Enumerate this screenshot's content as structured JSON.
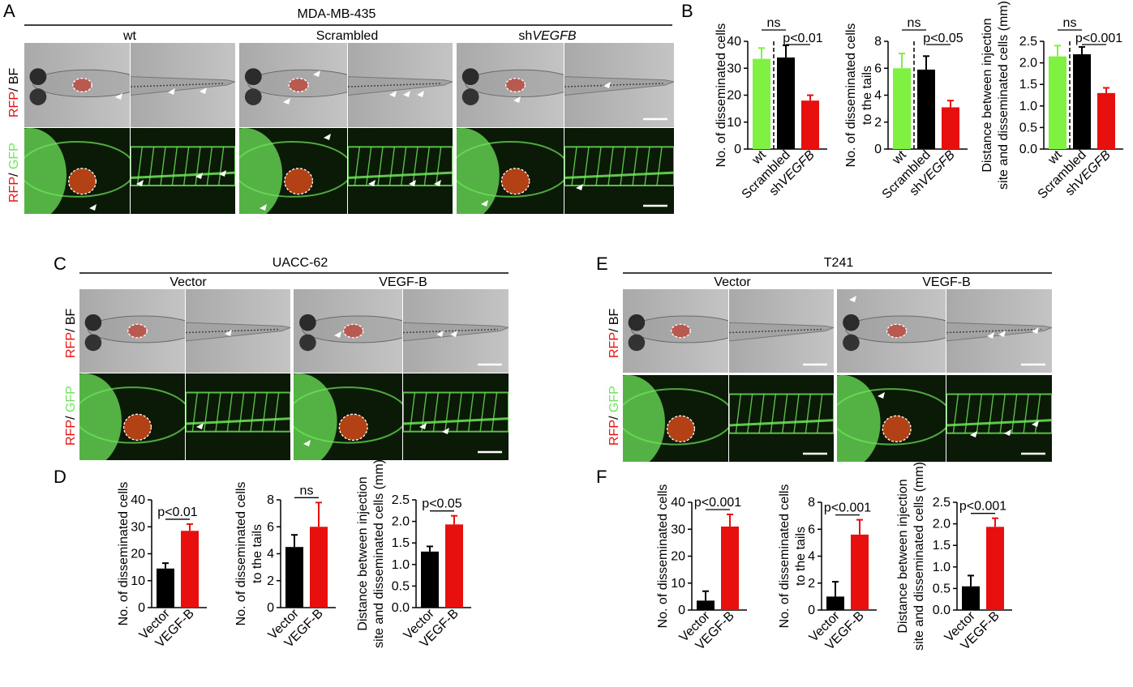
{
  "colors": {
    "wt": "#7ff241",
    "black": "#000000",
    "red": "#e8100e",
    "gfp": "#6ee65a",
    "rfp": "#e8100e",
    "bf_bg": "#b4b4b4",
    "fl_bg": "#0b1a06"
  },
  "panel_labels": {
    "a": "A",
    "b": "B",
    "c": "C",
    "d": "D",
    "e": "E",
    "f": "F"
  },
  "channels": {
    "rfp": "RFP",
    "bf": "BF",
    "gfp": "GFP",
    "sep": "/ "
  },
  "panel_a": {
    "cell_line": "MDA-MB-435",
    "groups": [
      {
        "label": "wt",
        "italic": ""
      },
      {
        "label": "Scrambled",
        "italic": ""
      },
      {
        "label": "sh",
        "italic": "VEGFB"
      }
    ]
  },
  "panel_c": {
    "cell_line": "UACC-62",
    "groups": [
      "Vector",
      "VEGF-B"
    ]
  },
  "panel_e": {
    "cell_line": "T241",
    "groups": [
      "Vector",
      "VEGF-B"
    ]
  },
  "chart_data": [
    {
      "id": "B1",
      "type": "bar",
      "ylabel": "No. of disseminated cells",
      "categories": [
        "wt",
        "Scrambled",
        "shVEGFB"
      ],
      "values": [
        33.5,
        34,
        18
      ],
      "errors": [
        4,
        4.5,
        2
      ],
      "ylim": [
        0,
        40
      ],
      "yticks": [
        0,
        10,
        20,
        30,
        40
      ],
      "ns": "ns",
      "p": "p<0.01"
    },
    {
      "id": "B2",
      "type": "bar",
      "ylabel": "No. of disseminated cells to the tails",
      "categories": [
        "wt",
        "Scrambled",
        "shVEGFB"
      ],
      "values": [
        6,
        5.9,
        3.1
      ],
      "errors": [
        1.1,
        1,
        0.5
      ],
      "ylim": [
        0,
        8
      ],
      "yticks": [
        0,
        2,
        4,
        6,
        8
      ],
      "ns": "ns",
      "p": "p<0.05"
    },
    {
      "id": "B3",
      "type": "bar",
      "ylabel": "Distance between injection site and disseminated cells (mm)",
      "categories": [
        "wt",
        "Scrambled",
        "shVEGFB"
      ],
      "values": [
        2.15,
        2.2,
        1.3
      ],
      "errors": [
        0.25,
        0.17,
        0.12
      ],
      "ylim": [
        0,
        2.5
      ],
      "yticks": [
        0,
        0.5,
        1.0,
        1.5,
        2.0,
        2.5
      ],
      "ns": "ns",
      "p": "p<0.001"
    },
    {
      "id": "D1",
      "type": "bar",
      "ylabel": "No. of disseminated cells",
      "categories": [
        "Vector",
        "VEGF-B"
      ],
      "values": [
        14.5,
        28.5
      ],
      "errors": [
        2,
        2.5
      ],
      "ylim": [
        0,
        40
      ],
      "yticks": [
        0,
        10,
        20,
        30,
        40
      ],
      "p": "p<0.01"
    },
    {
      "id": "D2",
      "type": "bar",
      "ylabel": "No. of disseminated cells to the tails",
      "categories": [
        "Vector",
        "VEGF-B"
      ],
      "values": [
        4.5,
        6
      ],
      "errors": [
        0.9,
        1.8
      ],
      "ylim": [
        0,
        8
      ],
      "yticks": [
        0,
        2,
        4,
        6,
        8
      ],
      "p": "ns"
    },
    {
      "id": "D3",
      "type": "bar",
      "ylabel": "Distance between injection site and disseminated cells (mm)",
      "categories": [
        "Vector",
        "VEGF-B"
      ],
      "values": [
        1.3,
        1.93
      ],
      "errors": [
        0.12,
        0.2
      ],
      "ylim": [
        0,
        2.5
      ],
      "yticks": [
        0,
        0.5,
        1.0,
        1.5,
        2.0,
        2.5
      ],
      "p": "p<0.05"
    },
    {
      "id": "F1",
      "type": "bar",
      "ylabel": "No. of disseminated cells",
      "categories": [
        "Vector",
        "VEGF-B"
      ],
      "values": [
        3.5,
        31
      ],
      "errors": [
        3.5,
        4.5
      ],
      "ylim": [
        0,
        40
      ],
      "yticks": [
        0,
        10,
        20,
        30,
        40
      ],
      "p": "p<0.001"
    },
    {
      "id": "F2",
      "type": "bar",
      "ylabel": "No. of disseminated cells to the tails",
      "categories": [
        "Vector",
        "VEGF-B"
      ],
      "values": [
        1,
        5.6
      ],
      "errors": [
        1.1,
        1.1
      ],
      "ylim": [
        0,
        8
      ],
      "yticks": [
        0,
        2,
        4,
        6,
        8
      ],
      "p": "p<0.001"
    },
    {
      "id": "F3",
      "type": "bar",
      "ylabel": "Distance between injection site and disseminated cells (mm)",
      "categories": [
        "Vector",
        "VEGF-B"
      ],
      "values": [
        0.55,
        1.93
      ],
      "errors": [
        0.25,
        0.2
      ],
      "ylim": [
        0,
        2.5
      ],
      "yticks": [
        0,
        0.5,
        1.0,
        1.5,
        2.0,
        2.5
      ],
      "p": "p<0.001"
    }
  ]
}
